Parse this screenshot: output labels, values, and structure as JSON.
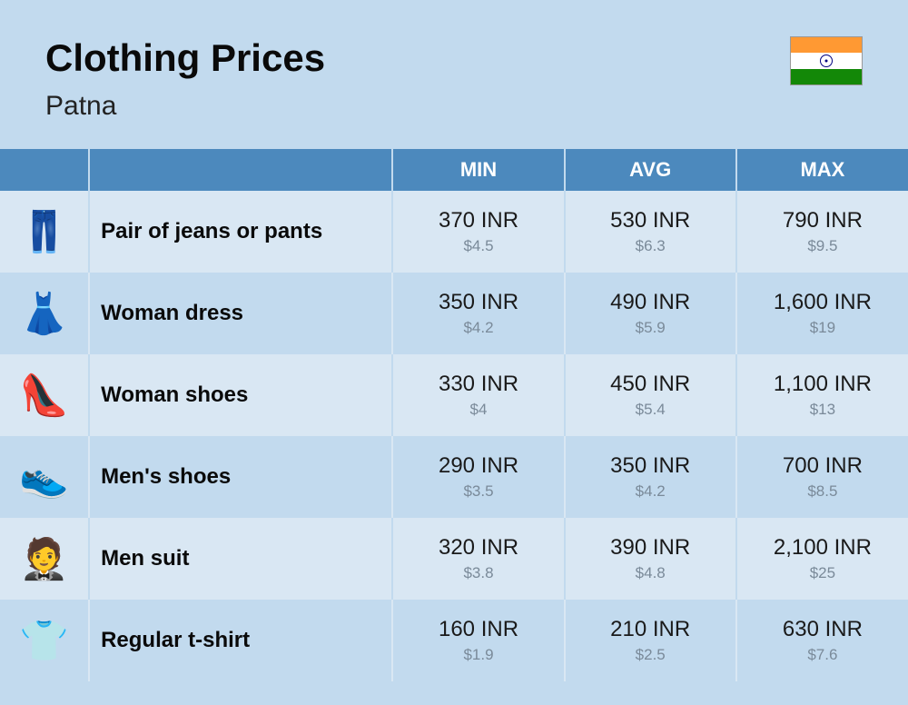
{
  "header": {
    "title": "Clothing Prices",
    "subtitle": "Patna"
  },
  "columns": {
    "min": "MIN",
    "avg": "AVG",
    "max": "MAX"
  },
  "rows": [
    {
      "icon": "👖",
      "name": "Pair of jeans or pants",
      "min_inr": "370 INR",
      "min_usd": "$4.5",
      "avg_inr": "530 INR",
      "avg_usd": "$6.3",
      "max_inr": "790 INR",
      "max_usd": "$9.5"
    },
    {
      "icon": "👗",
      "name": "Woman dress",
      "min_inr": "350 INR",
      "min_usd": "$4.2",
      "avg_inr": "490 INR",
      "avg_usd": "$5.9",
      "max_inr": "1,600 INR",
      "max_usd": "$19"
    },
    {
      "icon": "👠",
      "name": "Woman shoes",
      "min_inr": "330 INR",
      "min_usd": "$4",
      "avg_inr": "450 INR",
      "avg_usd": "$5.4",
      "max_inr": "1,100 INR",
      "max_usd": "$13"
    },
    {
      "icon": "👟",
      "name": "Men's shoes",
      "min_inr": "290 INR",
      "min_usd": "$3.5",
      "avg_inr": "350 INR",
      "avg_usd": "$4.2",
      "max_inr": "700 INR",
      "max_usd": "$8.5"
    },
    {
      "icon": "🤵",
      "name": "Men suit",
      "min_inr": "320 INR",
      "min_usd": "$3.8",
      "avg_inr": "390 INR",
      "avg_usd": "$4.8",
      "max_inr": "2,100 INR",
      "max_usd": "$25"
    },
    {
      "icon": "👕",
      "name": "Regular t-shirt",
      "min_inr": "160 INR",
      "min_usd": "$1.9",
      "avg_inr": "210 INR",
      "avg_usd": "$2.5",
      "max_inr": "630 INR",
      "max_usd": "$7.6"
    }
  ]
}
